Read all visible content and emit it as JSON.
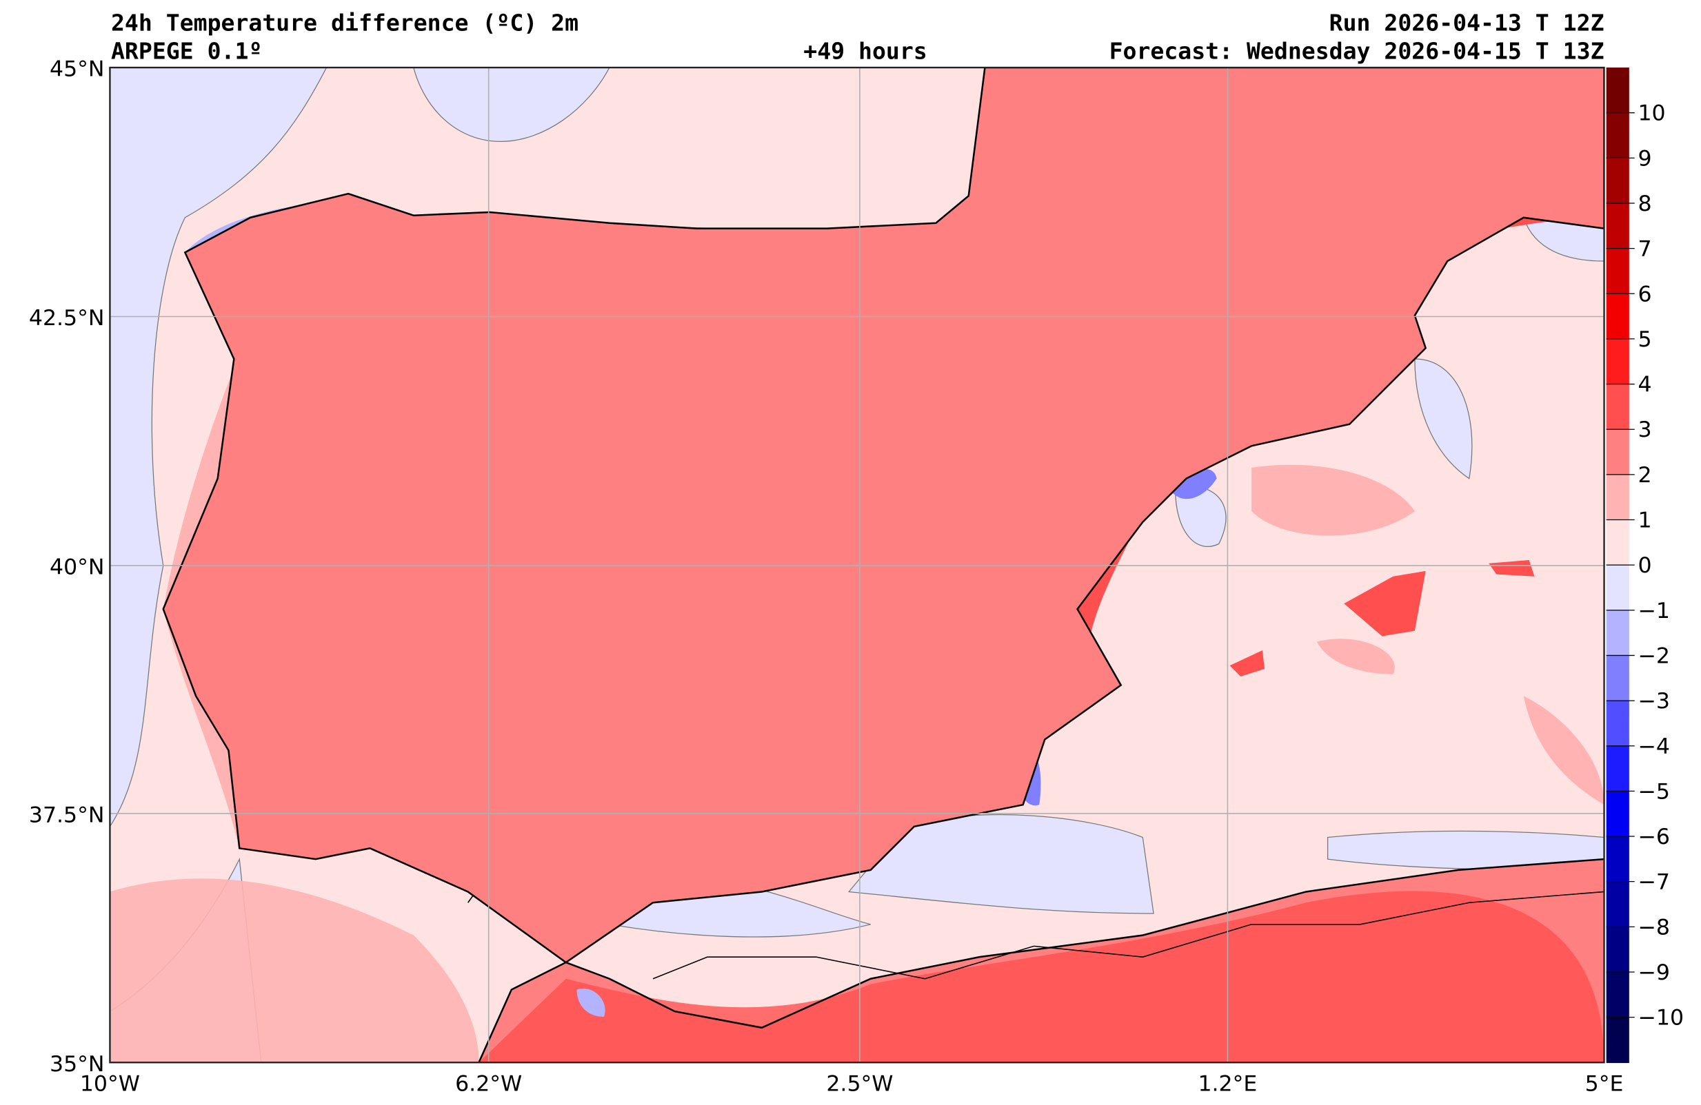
{
  "header": {
    "title": "24h Temperature difference (ºC) 2m",
    "model": "ARPEGE 0.1º",
    "lead_time": "+49 hours",
    "run": "Run 2026-04-13 T 12Z",
    "forecast": "Forecast: Wednesday 2026-04-15 T 13Z"
  },
  "axes": {
    "lat_labels": [
      "45°N",
      "42.5°N",
      "40°N",
      "37.5°N",
      "35°N"
    ],
    "lon_labels": [
      "10°W",
      "6.2°W",
      "2.5°W",
      "1.2°E",
      "5°E"
    ],
    "lat_range": [
      35,
      45
    ],
    "lon_range": [
      -10,
      5
    ]
  },
  "colorbar": {
    "labels": [
      "10",
      "9",
      "8",
      "7",
      "6",
      "5",
      "4",
      "3",
      "2",
      "1",
      "0",
      "−1",
      "−2",
      "−3",
      "−4",
      "−5",
      "−6",
      "−7",
      "−8",
      "−9",
      "−10"
    ],
    "colors": [
      "#730000",
      "#850000",
      "#a30000",
      "#bf0000",
      "#d60000",
      "#f20000",
      "#ff1c1c",
      "#ff4f4f",
      "#ff8080",
      "#ffb3b3",
      "#ffe3e3",
      "#e3e3ff",
      "#b3b3ff",
      "#8080ff",
      "#4f4fff",
      "#1c1cff",
      "#0000f2",
      "#0000c2",
      "#0000a3",
      "#000085",
      "#000066",
      "#000050"
    ]
  },
  "palette": {
    "sea_pos": "#ffe3e3",
    "sea_neg": "#e3e3ff",
    "l1": "#ffb3b3",
    "l2": "#ff8080",
    "l3": "#ff4f4f",
    "l4": "#ff1c1c",
    "l5": "#f20000",
    "l6": "#bf0000",
    "l7": "#850000",
    "b1": "#b3b3ff",
    "b2": "#8080ff"
  }
}
